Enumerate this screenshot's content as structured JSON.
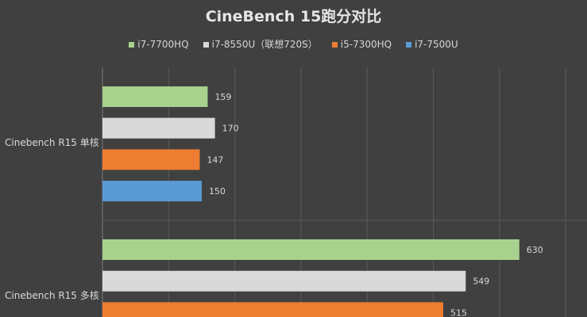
{
  "chart_data": {
    "type": "bar",
    "orientation": "horizontal",
    "title": "CineBench 15跑分对比",
    "categories": [
      "Cinebench R15 单核",
      "Cinebench R15 多核"
    ],
    "series": [
      {
        "name": "i7-7700HQ",
        "color": "#a9d18e",
        "values": [
          159,
          630
        ]
      },
      {
        "name": "i7-8550U（联想720S）",
        "color": "#d9d9d9",
        "values": [
          170,
          549
        ]
      },
      {
        "name": "i5-7300HQ",
        "color": "#ed7d31",
        "values": [
          147,
          515
        ]
      },
      {
        "name": "i7-7500U",
        "color": "#5b9bd5",
        "values": [
          150,
          null
        ]
      }
    ],
    "legend_position": "top",
    "grid": true,
    "xlim": [
      0,
      700
    ]
  }
}
